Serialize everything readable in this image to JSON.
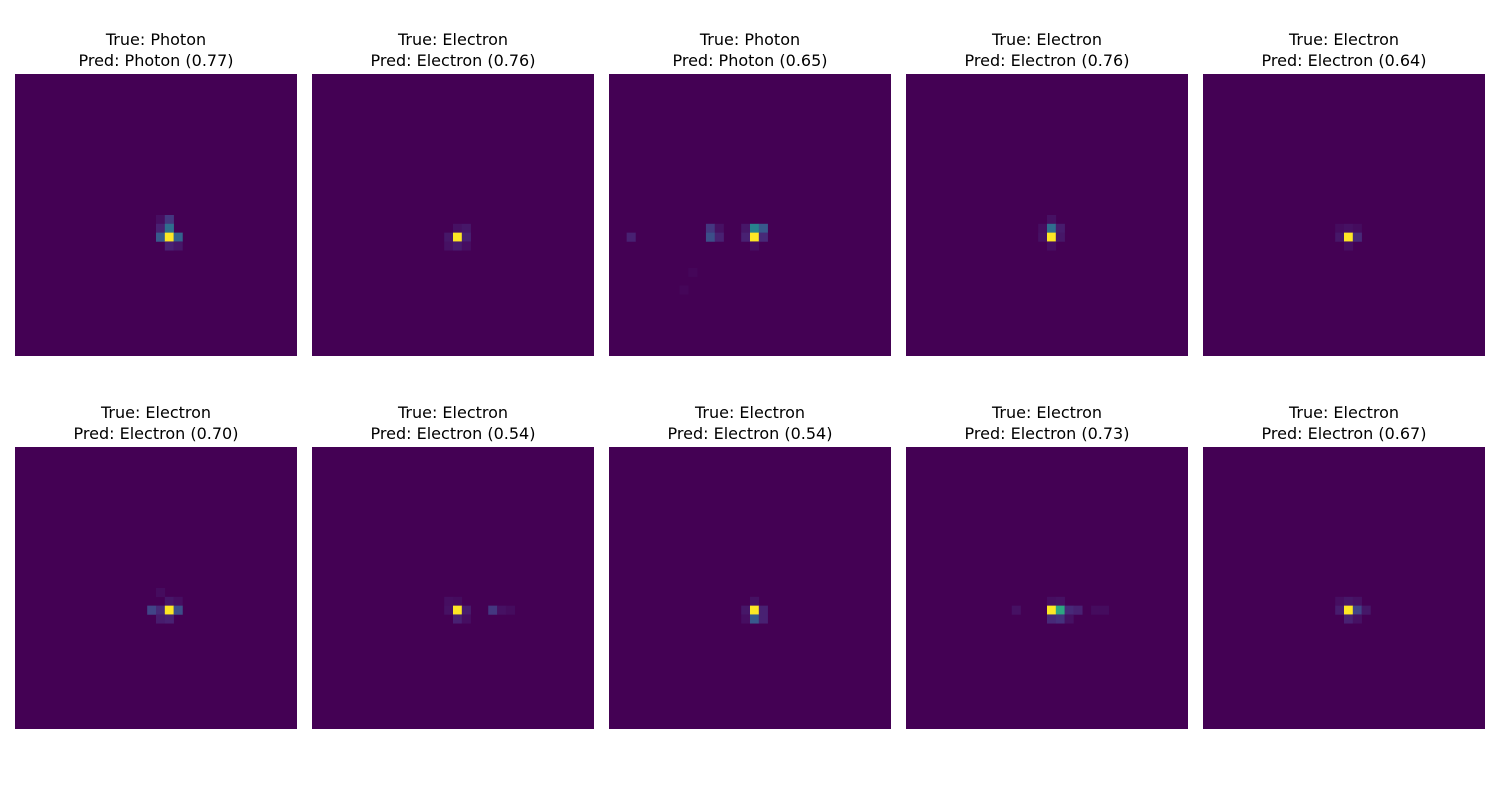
{
  "figure": {
    "background": "#ffffff"
  },
  "colormap": {
    "name": "viridis",
    "min": "#440154",
    "max": "#fde725"
  },
  "chart_data": {
    "type": "heatmap",
    "grid_size": [
      32,
      32
    ],
    "colormap": "viridis",
    "axes_visible": false,
    "panels": [
      {
        "true_label": "True: Photon",
        "pred_label": "Pred: Photon (0.77)",
        "true_class": "Photon",
        "pred_class": "Photon",
        "confidence": 0.77,
        "cells": [
          [
            16,
            16,
            0.05
          ],
          [
            17,
            16,
            0.2
          ],
          [
            16,
            17,
            0.12
          ],
          [
            17,
            17,
            0.45
          ],
          [
            16,
            18,
            0.35
          ],
          [
            17,
            18,
            1.0
          ],
          [
            18,
            18,
            0.4
          ],
          [
            17,
            19,
            0.12
          ],
          [
            18,
            19,
            0.08
          ]
        ]
      },
      {
        "true_label": "True: Electron",
        "pred_label": "Pred: Electron (0.76)",
        "true_class": "Electron",
        "pred_class": "Electron",
        "confidence": 0.76,
        "cells": [
          [
            16,
            17,
            0.06
          ],
          [
            17,
            17,
            0.08
          ],
          [
            15,
            18,
            0.08
          ],
          [
            16,
            18,
            1.0
          ],
          [
            17,
            18,
            0.12
          ],
          [
            15,
            19,
            0.06
          ],
          [
            16,
            19,
            0.1
          ],
          [
            17,
            19,
            0.05
          ]
        ]
      },
      {
        "true_label": "True: Photon",
        "pred_label": "Pred: Photon (0.65)",
        "true_class": "Photon",
        "pred_class": "Photon",
        "confidence": 0.65,
        "cells": [
          [
            11,
            17,
            0.2
          ],
          [
            12,
            17,
            0.06
          ],
          [
            15,
            17,
            0.08
          ],
          [
            16,
            17,
            0.55
          ],
          [
            17,
            17,
            0.35
          ],
          [
            2,
            18,
            0.12
          ],
          [
            11,
            18,
            0.3
          ],
          [
            12,
            18,
            0.12
          ],
          [
            15,
            18,
            0.12
          ],
          [
            16,
            18,
            1.0
          ],
          [
            17,
            18,
            0.15
          ],
          [
            16,
            19,
            0.05
          ],
          [
            9,
            22,
            0.02
          ],
          [
            8,
            24,
            0.02
          ]
        ]
      },
      {
        "true_label": "True: Electron",
        "pred_label": "Pred: Electron (0.76)",
        "true_class": "Electron",
        "pred_class": "Electron",
        "confidence": 0.76,
        "cells": [
          [
            16,
            16,
            0.06
          ],
          [
            15,
            17,
            0.05
          ],
          [
            16,
            17,
            0.45
          ],
          [
            17,
            17,
            0.1
          ],
          [
            15,
            18,
            0.06
          ],
          [
            16,
            18,
            1.0
          ],
          [
            17,
            18,
            0.08
          ],
          [
            16,
            19,
            0.05
          ]
        ]
      },
      {
        "true_label": "True: Electron",
        "pred_label": "Pred: Electron (0.64)",
        "true_class": "Electron",
        "pred_class": "Electron",
        "confidence": 0.64,
        "cells": [
          [
            15,
            17,
            0.04
          ],
          [
            16,
            17,
            0.06
          ],
          [
            17,
            17,
            0.04
          ],
          [
            15,
            18,
            0.08
          ],
          [
            16,
            18,
            1.0
          ],
          [
            17,
            18,
            0.15
          ],
          [
            16,
            19,
            0.05
          ]
        ]
      },
      {
        "true_label": "True: Electron",
        "pred_label": "Pred: Electron (0.70)",
        "true_class": "Electron",
        "pred_class": "Electron",
        "confidence": 0.7,
        "cells": [
          [
            16,
            16,
            0.04
          ],
          [
            17,
            17,
            0.08
          ],
          [
            18,
            17,
            0.05
          ],
          [
            15,
            18,
            0.25
          ],
          [
            16,
            18,
            0.15
          ],
          [
            17,
            18,
            1.0
          ],
          [
            18,
            18,
            0.3
          ],
          [
            16,
            19,
            0.1
          ],
          [
            17,
            19,
            0.12
          ]
        ]
      },
      {
        "true_label": "True: Electron",
        "pred_label": "Pred: Electron (0.54)",
        "true_class": "Electron",
        "pred_class": "Electron",
        "confidence": 0.54,
        "cells": [
          [
            15,
            17,
            0.05
          ],
          [
            16,
            17,
            0.04
          ],
          [
            15,
            18,
            0.06
          ],
          [
            16,
            18,
            1.0
          ],
          [
            17,
            18,
            0.1
          ],
          [
            20,
            18,
            0.2
          ],
          [
            21,
            18,
            0.06
          ],
          [
            22,
            18,
            0.04
          ],
          [
            16,
            19,
            0.12
          ],
          [
            17,
            19,
            0.05
          ]
        ]
      },
      {
        "true_label": "True: Electron",
        "pred_label": "Pred: Electron (0.54)",
        "true_class": "Electron",
        "pred_class": "Electron",
        "confidence": 0.54,
        "cells": [
          [
            16,
            17,
            0.06
          ],
          [
            15,
            18,
            0.08
          ],
          [
            16,
            18,
            1.0
          ],
          [
            17,
            18,
            0.12
          ],
          [
            15,
            19,
            0.05
          ],
          [
            16,
            19,
            0.35
          ],
          [
            17,
            19,
            0.12
          ]
        ]
      },
      {
        "true_label": "True: Electron",
        "pred_label": "Pred: Electron (0.73)",
        "true_class": "Electron",
        "pred_class": "Electron",
        "confidence": 0.73,
        "cells": [
          [
            12,
            18,
            0.06
          ],
          [
            16,
            17,
            0.05
          ],
          [
            17,
            17,
            0.06
          ],
          [
            16,
            18,
            1.0
          ],
          [
            17,
            18,
            0.7
          ],
          [
            18,
            18,
            0.15
          ],
          [
            19,
            18,
            0.12
          ],
          [
            21,
            18,
            0.04
          ],
          [
            22,
            18,
            0.04
          ],
          [
            16,
            19,
            0.15
          ],
          [
            17,
            19,
            0.18
          ],
          [
            18,
            19,
            0.06
          ]
        ]
      },
      {
        "true_label": "True: Electron",
        "pred_label": "Pred: Electron (0.67)",
        "true_class": "Electron",
        "pred_class": "Electron",
        "confidence": 0.67,
        "cells": [
          [
            15,
            17,
            0.05
          ],
          [
            16,
            17,
            0.08
          ],
          [
            17,
            17,
            0.06
          ],
          [
            15,
            18,
            0.1
          ],
          [
            16,
            18,
            1.0
          ],
          [
            17,
            18,
            0.25
          ],
          [
            18,
            18,
            0.08
          ],
          [
            16,
            19,
            0.12
          ],
          [
            17,
            19,
            0.06
          ]
        ]
      }
    ]
  }
}
